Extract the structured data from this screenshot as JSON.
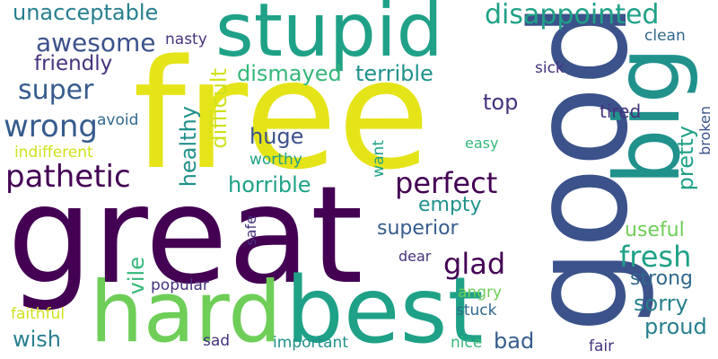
{
  "colors": {
    "background": "#ffffff",
    "dark_purple": "#440154",
    "deep_purple": "#46327e",
    "indigo": "#3b528b",
    "slate_blue": "#365c8d",
    "steel_blue": "#31688e",
    "teal_blue": "#277f8e",
    "teal": "#21918c",
    "sea_green": "#1fa187",
    "green": "#35b779",
    "light_green": "#6ece58",
    "lime": "#a0da39",
    "yellow": "#d0e11c",
    "bright_yellow": "#e5e419"
  },
  "words": {
    "great": "great",
    "free": "free",
    "good": "good",
    "stupid": "stupid",
    "best": "best",
    "hard": "hard",
    "big": "big",
    "disappointed": "disappointed",
    "unacceptable": "unacceptable",
    "awesome": "awesome",
    "nasty": "nasty",
    "clean": "clean",
    "friendly": "friendly",
    "dismayed": "dismayed",
    "terrible": "terrible",
    "sick": "sick",
    "super": "super",
    "top": "top",
    "wrong": "wrong",
    "avoid": "avoid",
    "tired": "tired",
    "huge": "huge",
    "indifferent": "indifferent",
    "easy": "easy",
    "worthy": "worthy",
    "pathetic": "pathetic",
    "perfect": "perfect",
    "horrible": "horrible",
    "empty": "empty",
    "superior": "superior",
    "useful": "useful",
    "fresh": "fresh",
    "dear": "dear",
    "glad": "glad",
    "strong": "strong",
    "popular": "popular",
    "angry": "angry",
    "sorry": "sorry",
    "faithful": "faithful",
    "stuck": "stuck",
    "proud": "proud",
    "wish": "wish",
    "sad": "sad",
    "important": "important",
    "nice": "nice",
    "bad": "bad",
    "fair": "fair",
    "healthy": "healthy",
    "difficult": "difficult",
    "vile": "vile",
    "safe": "safe",
    "want": "want",
    "pretty": "pretty",
    "broken": "broken"
  }
}
